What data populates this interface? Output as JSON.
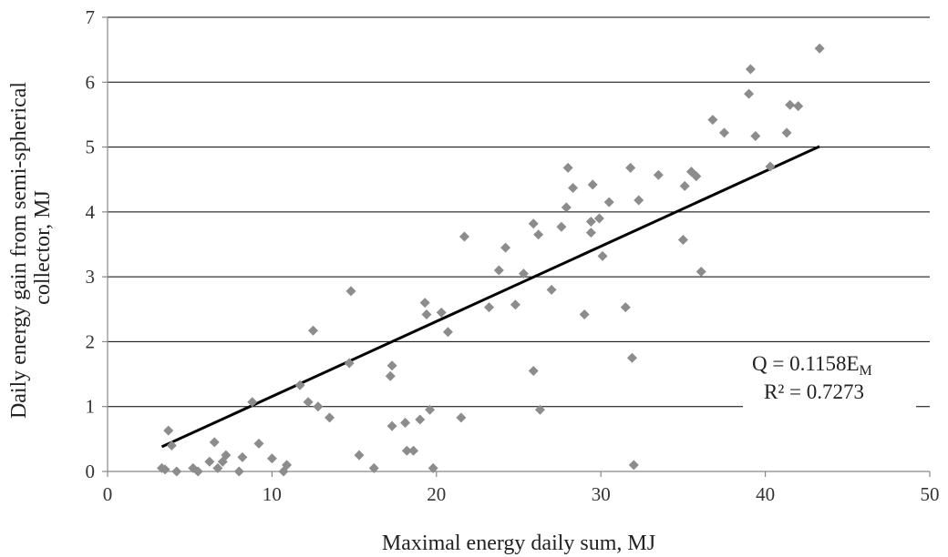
{
  "chart_data": {
    "type": "scatter",
    "title": "",
    "xlabel": "Maximal energy daily sum, MJ",
    "ylabel": "Daily energy gain from semi-spherical collector, MJ",
    "xlim": [
      0,
      50
    ],
    "ylim": [
      0,
      7
    ],
    "xticks": [
      0,
      10,
      20,
      30,
      40,
      50
    ],
    "yticks": [
      0,
      1,
      2,
      3,
      4,
      5,
      6,
      7
    ],
    "xtick_labels": [
      "0",
      "10",
      "20",
      "30",
      "40",
      "50"
    ],
    "ytick_labels": [
      "0",
      "1",
      "2",
      "3",
      "4",
      "5",
      "6",
      "7"
    ],
    "grid": "horizontal",
    "marker_color": "#8c8c8c",
    "trendline_color": "#000000",
    "points": [
      [
        3.3,
        0.05
      ],
      [
        3.5,
        0.03
      ],
      [
        3.7,
        0.63
      ],
      [
        3.9,
        0.4
      ],
      [
        4.2,
        0.0
      ],
      [
        5.2,
        0.05
      ],
      [
        5.5,
        0.0
      ],
      [
        6.2,
        0.15
      ],
      [
        6.5,
        0.45
      ],
      [
        6.7,
        0.05
      ],
      [
        7.0,
        0.15
      ],
      [
        7.2,
        0.25
      ],
      [
        8.0,
        0.0
      ],
      [
        8.2,
        0.22
      ],
      [
        8.8,
        1.07
      ],
      [
        9.2,
        0.43
      ],
      [
        10.0,
        0.2
      ],
      [
        10.7,
        0.0
      ],
      [
        10.9,
        0.1
      ],
      [
        11.7,
        1.33
      ],
      [
        12.2,
        1.07
      ],
      [
        12.5,
        2.17
      ],
      [
        12.8,
        1.0
      ],
      [
        13.5,
        0.83
      ],
      [
        14.7,
        1.67
      ],
      [
        14.8,
        2.78
      ],
      [
        15.3,
        0.25
      ],
      [
        16.2,
        0.05
      ],
      [
        17.2,
        1.47
      ],
      [
        17.3,
        1.63
      ],
      [
        17.3,
        0.7
      ],
      [
        18.1,
        0.75
      ],
      [
        18.2,
        0.32
      ],
      [
        18.6,
        0.32
      ],
      [
        19.0,
        0.8
      ],
      [
        19.3,
        2.6
      ],
      [
        19.4,
        2.42
      ],
      [
        19.6,
        0.95
      ],
      [
        19.8,
        0.05
      ],
      [
        20.3,
        2.45
      ],
      [
        20.7,
        2.15
      ],
      [
        21.5,
        0.83
      ],
      [
        21.7,
        3.62
      ],
      [
        23.2,
        2.53
      ],
      [
        23.8,
        3.1
      ],
      [
        24.2,
        3.45
      ],
      [
        24.8,
        2.57
      ],
      [
        25.3,
        3.05
      ],
      [
        25.9,
        3.82
      ],
      [
        25.9,
        1.55
      ],
      [
        26.2,
        3.65
      ],
      [
        26.3,
        0.95
      ],
      [
        27.0,
        2.8
      ],
      [
        27.6,
        3.77
      ],
      [
        27.9,
        4.07
      ],
      [
        28.0,
        4.68
      ],
      [
        28.3,
        4.37
      ],
      [
        29.0,
        2.42
      ],
      [
        29.4,
        3.85
      ],
      [
        29.4,
        3.68
      ],
      [
        29.5,
        4.42
      ],
      [
        29.9,
        3.9
      ],
      [
        30.1,
        3.32
      ],
      [
        30.5,
        4.15
      ],
      [
        31.5,
        2.53
      ],
      [
        31.8,
        4.68
      ],
      [
        31.9,
        1.75
      ],
      [
        32.0,
        0.1
      ],
      [
        32.3,
        4.18
      ],
      [
        33.5,
        4.57
      ],
      [
        35.0,
        3.57
      ],
      [
        35.1,
        4.4
      ],
      [
        35.5,
        4.62
      ],
      [
        35.8,
        4.55
      ],
      [
        36.1,
        3.08
      ],
      [
        36.8,
        5.42
      ],
      [
        37.5,
        5.22
      ],
      [
        39.0,
        5.82
      ],
      [
        39.1,
        6.2
      ],
      [
        39.4,
        5.17
      ],
      [
        40.3,
        4.7
      ],
      [
        41.3,
        5.22
      ],
      [
        41.5,
        5.65
      ],
      [
        42.0,
        5.63
      ],
      [
        43.3,
        6.52
      ]
    ],
    "trendline": {
      "x": [
        3.3,
        43.3
      ],
      "y": [
        0.38,
        5.01
      ]
    },
    "annotations": {
      "equation_main": "Q = 0.1158E",
      "equation_subscript": "M",
      "r_squared": "R² = 0.7273"
    }
  }
}
